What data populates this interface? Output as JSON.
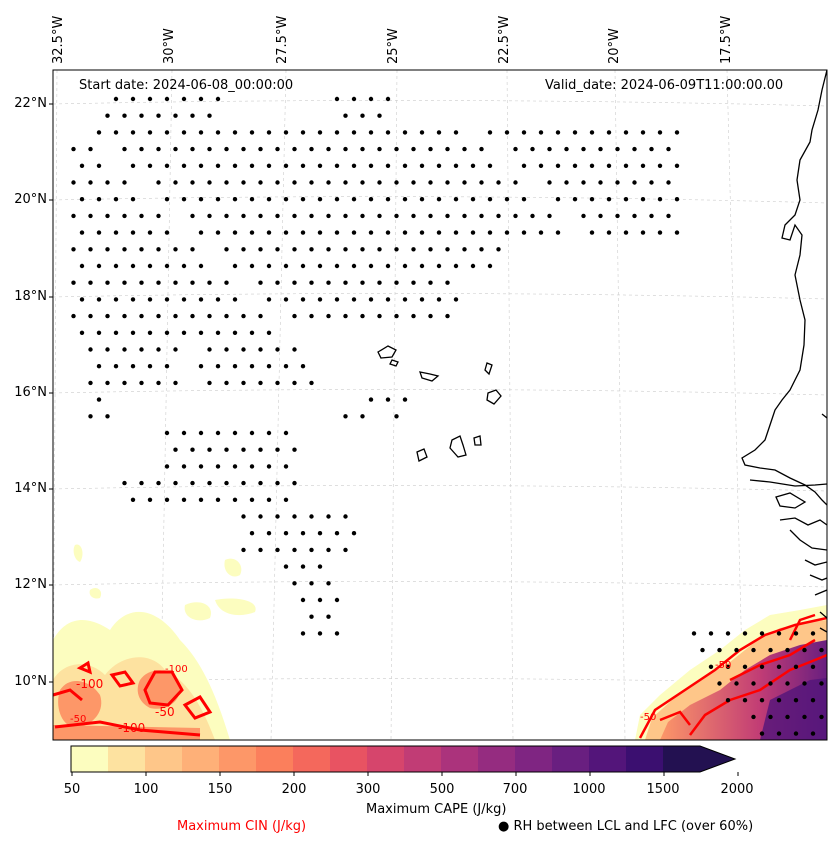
{
  "header": {
    "start_date": "Start date: 2024-06-08_00:00:00",
    "valid_date": "Valid_date: 2024-06-09T11:00:00.00"
  },
  "longitude_labels": [
    "32.5°W",
    "30°W",
    "27.5°W",
    "25°W",
    "22.5°W",
    "20°W",
    "17.5°W"
  ],
  "latitude_labels": [
    "22°N",
    "20°N",
    "18°N",
    "16°N",
    "14°N",
    "12°N",
    "10°N"
  ],
  "colorbar": {
    "label": "Maximum CAPE (J/kg)",
    "ticks": [
      "50",
      "100",
      "150",
      "200",
      "300",
      "500",
      "700",
      "1000",
      "1500",
      "2000"
    ],
    "colors": [
      "#fcfdbf",
      "#fde2a0",
      "#fec689",
      "#feb078",
      "#fd9768",
      "#fb7f5c",
      "#f4685c",
      "#e85362",
      "#d6456c",
      "#c13c75",
      "#ab337c",
      "#952c80",
      "#7f2582",
      "#691f80",
      "#53157a",
      "#3b0f70",
      "#231151"
    ]
  },
  "legend": {
    "cin": "Maximum CIN (J/kg)",
    "cin_color": "#ff0000",
    "rh": "RH between LCL and LFC (over 60%)",
    "rh_marker": "●"
  },
  "contour_labels": [
    "-100",
    "-50",
    "-100",
    "-50",
    "-100",
    "-50",
    "-50"
  ]
}
